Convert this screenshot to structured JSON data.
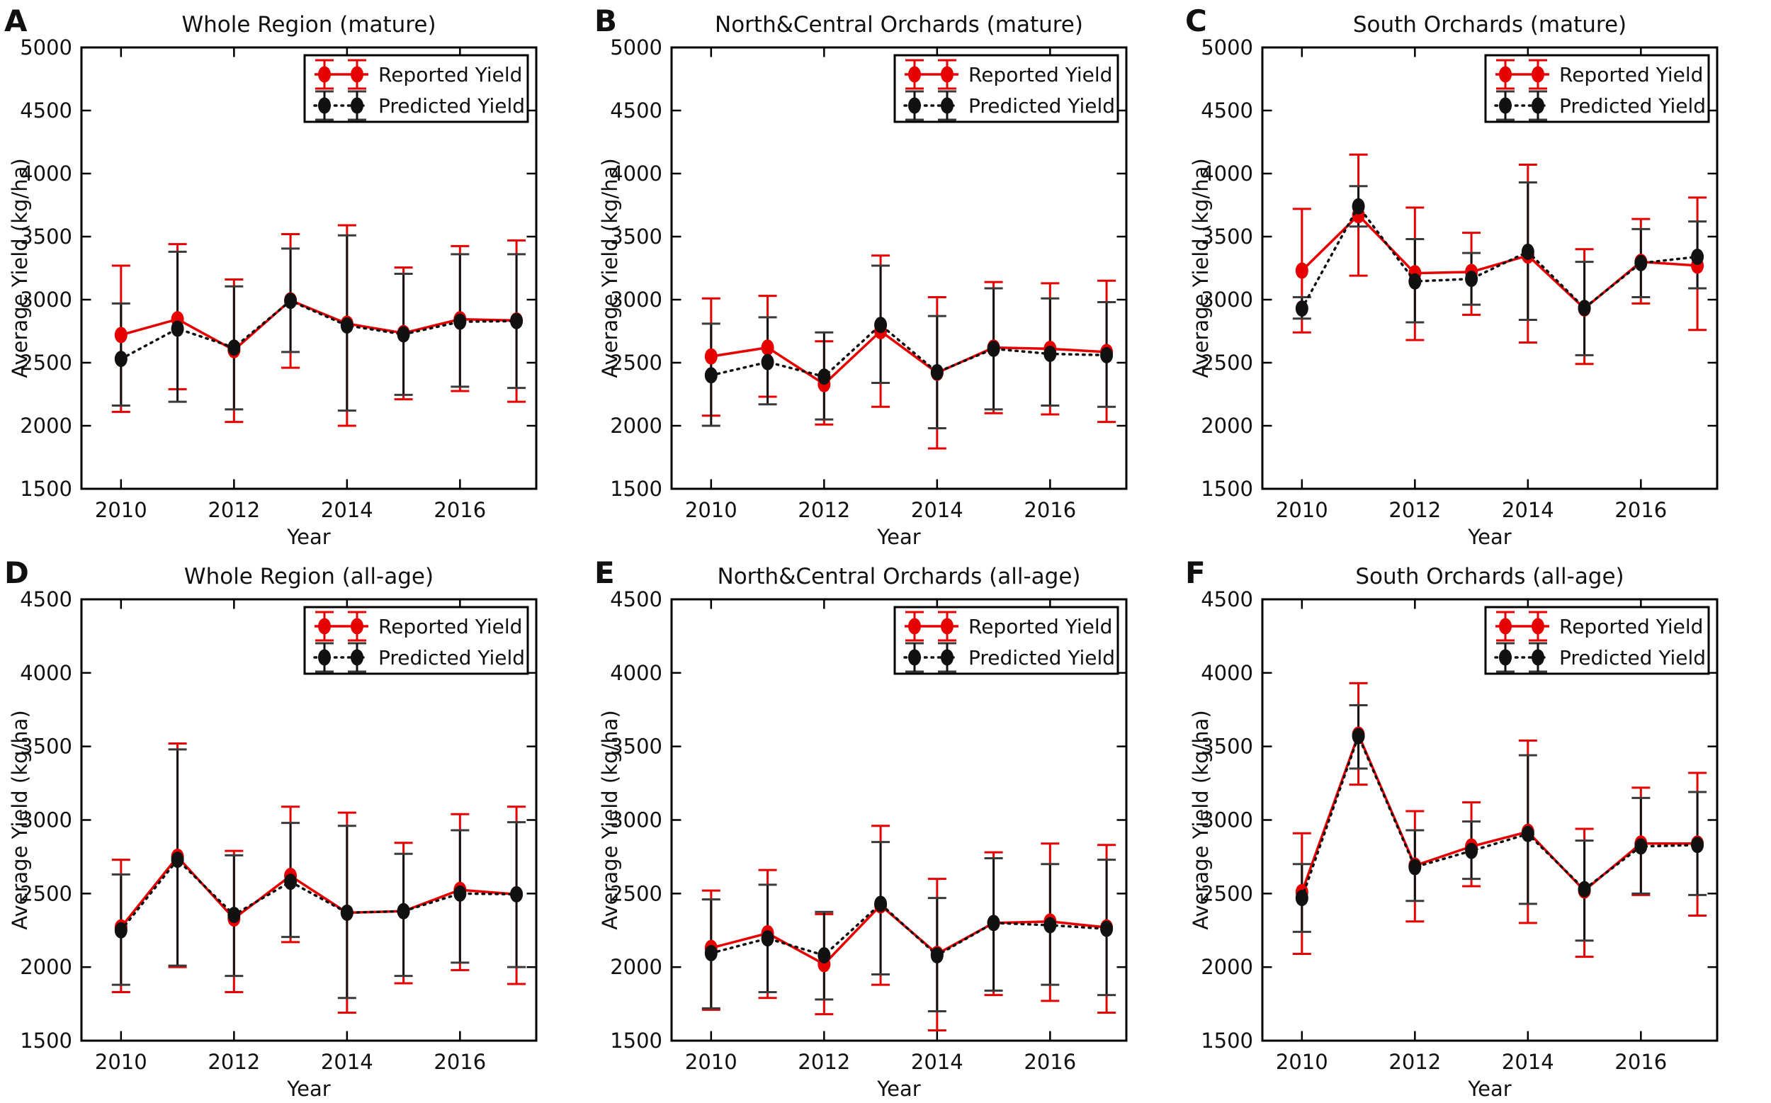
{
  "figure": {
    "xlabel": "Year",
    "ylabel": "Average Yield (kg/ha)",
    "legend": [
      "Reported Yield",
      "Predicted Yield"
    ],
    "colors": {
      "reported": "#e60000",
      "predicted": "#111111"
    }
  },
  "chart_data": [
    {
      "type": "line",
      "panel_label": "A",
      "title": "Whole Region (mature)",
      "xlabel": "Year",
      "ylabel": "Average Yield (kg/ha)",
      "x": [
        2010,
        2011,
        2012,
        2013,
        2014,
        2015,
        2016,
        2017
      ],
      "xticks": [
        2010,
        2012,
        2014,
        2016
      ],
      "xlim": [
        2009.3,
        2017.35
      ],
      "ylim": [
        1500,
        5000
      ],
      "yticks": [
        1500,
        2000,
        2500,
        3000,
        3500,
        4000,
        4500,
        5000
      ],
      "grid": false,
      "legend_position": "top-right",
      "series": [
        {
          "name": "Reported Yield",
          "color": "#e60000",
          "cap_color": "#e60000",
          "line_style": "solid",
          "values": [
            2720,
            2845,
            2600,
            2995,
            2810,
            2735,
            2845,
            2835
          ],
          "err_upper": [
            3270,
            3440,
            3160,
            3520,
            3590,
            3255,
            3425,
            3470
          ],
          "err_lower": [
            2110,
            2290,
            2030,
            2460,
            2000,
            2210,
            2275,
            2190
          ]
        },
        {
          "name": "Predicted Yield",
          "color": "#111111",
          "cap_color": "#3a3a3a",
          "line_style": "dotted",
          "values": [
            2530,
            2770,
            2620,
            2990,
            2795,
            2725,
            2825,
            2830
          ],
          "err_upper": [
            2970,
            3380,
            3105,
            3405,
            3510,
            3205,
            3360,
            3360
          ],
          "err_lower": [
            2160,
            2190,
            2130,
            2585,
            2120,
            2245,
            2310,
            2300
          ]
        }
      ]
    },
    {
      "type": "line",
      "panel_label": "B",
      "title": "North&Central Orchards (mature)",
      "xlabel": "Year",
      "ylabel": "Average Yield (kg/ha)",
      "x": [
        2010,
        2011,
        2012,
        2013,
        2014,
        2015,
        2016,
        2017
      ],
      "xticks": [
        2010,
        2012,
        2014,
        2016
      ],
      "xlim": [
        2009.3,
        2017.35
      ],
      "ylim": [
        1500,
        5000
      ],
      "yticks": [
        1500,
        2000,
        2500,
        3000,
        3500,
        4000,
        4500,
        5000
      ],
      "grid": false,
      "legend_position": "top-right",
      "series": [
        {
          "name": "Reported Yield",
          "color": "#e60000",
          "cap_color": "#e60000",
          "line_style": "solid",
          "values": [
            2550,
            2620,
            2330,
            2750,
            2420,
            2620,
            2610,
            2585
          ],
          "err_upper": [
            3010,
            3030,
            2670,
            3350,
            3020,
            3140,
            3130,
            3150
          ],
          "err_lower": [
            2080,
            2230,
            2010,
            2150,
            1820,
            2100,
            2090,
            2030
          ]
        },
        {
          "name": "Predicted Yield",
          "color": "#111111",
          "cap_color": "#3a3a3a",
          "line_style": "dotted",
          "values": [
            2400,
            2505,
            2390,
            2800,
            2425,
            2610,
            2570,
            2560
          ],
          "err_upper": [
            2810,
            2860,
            2740,
            3270,
            2870,
            3090,
            3010,
            2980
          ],
          "err_lower": [
            2000,
            2170,
            2050,
            2340,
            1980,
            2130,
            2160,
            2150
          ]
        }
      ]
    },
    {
      "type": "line",
      "panel_label": "C",
      "title": "South Orchards (mature)",
      "xlabel": "Year",
      "ylabel": "Average Yield (kg/ha)",
      "x": [
        2010,
        2011,
        2012,
        2013,
        2014,
        2015,
        2016,
        2017
      ],
      "xticks": [
        2010,
        2012,
        2014,
        2016
      ],
      "xlim": [
        2009.3,
        2017.35
      ],
      "ylim": [
        1500,
        5000
      ],
      "yticks": [
        1500,
        2000,
        2500,
        3000,
        3500,
        4000,
        4500,
        5000
      ],
      "grid": false,
      "legend_position": "top-right",
      "series": [
        {
          "name": "Reported Yield",
          "color": "#e60000",
          "cap_color": "#e60000",
          "line_style": "solid",
          "values": [
            3230,
            3670,
            3210,
            3220,
            3350,
            2930,
            3300,
            3270
          ],
          "err_upper": [
            3720,
            4150,
            3730,
            3530,
            4070,
            3400,
            3640,
            3810
          ],
          "err_lower": [
            2740,
            3190,
            2680,
            2880,
            2660,
            2490,
            2970,
            2760
          ]
        },
        {
          "name": "Predicted Yield",
          "color": "#111111",
          "cap_color": "#3a3a3a",
          "line_style": "dotted",
          "values": [
            2930,
            3740,
            3145,
            3165,
            3380,
            2935,
            3290,
            3340
          ],
          "err_upper": [
            3020,
            3900,
            3480,
            3370,
            3930,
            3300,
            3560,
            3620
          ],
          "err_lower": [
            2850,
            3580,
            2820,
            2960,
            2840,
            2560,
            3020,
            3090
          ]
        }
      ]
    },
    {
      "type": "line",
      "panel_label": "D",
      "title": "Whole Region (all-age)",
      "xlabel": "Year",
      "ylabel": "Average Yield (kg/ha)",
      "x": [
        2010,
        2011,
        2012,
        2013,
        2014,
        2015,
        2016,
        2017
      ],
      "xticks": [
        2010,
        2012,
        2014,
        2016
      ],
      "xlim": [
        2009.3,
        2017.35
      ],
      "ylim": [
        1500,
        4500
      ],
      "yticks": [
        1500,
        2000,
        2500,
        3000,
        3500,
        4000,
        4500
      ],
      "grid": false,
      "legend_position": "top-right",
      "series": [
        {
          "name": "Reported Yield",
          "color": "#e60000",
          "cap_color": "#e60000",
          "line_style": "solid",
          "values": [
            2270,
            2750,
            2330,
            2620,
            2370,
            2380,
            2525,
            2495
          ],
          "err_upper": [
            2730,
            3520,
            2790,
            3090,
            3050,
            2845,
            3040,
            3090
          ],
          "err_lower": [
            1830,
            2000,
            1830,
            2170,
            1690,
            1890,
            1980,
            1885
          ]
        },
        {
          "name": "Predicted Yield",
          "color": "#111111",
          "cap_color": "#3a3a3a",
          "line_style": "dotted",
          "values": [
            2250,
            2730,
            2355,
            2580,
            2370,
            2380,
            2500,
            2495
          ],
          "err_upper": [
            2630,
            3480,
            2760,
            2980,
            2960,
            2770,
            2930,
            2985
          ],
          "err_lower": [
            1880,
            2010,
            1940,
            2205,
            1790,
            1940,
            2030,
            2000
          ]
        }
      ]
    },
    {
      "type": "line",
      "panel_label": "E",
      "title": "North&Central Orchards (all-age)",
      "xlabel": "Year",
      "ylabel": "Average Yield (kg/ha)",
      "x": [
        2010,
        2011,
        2012,
        2013,
        2014,
        2015,
        2016,
        2017
      ],
      "xticks": [
        2010,
        2012,
        2014,
        2016
      ],
      "xlim": [
        2009.3,
        2017.35
      ],
      "ylim": [
        1500,
        4500
      ],
      "yticks": [
        1500,
        2000,
        2500,
        3000,
        3500,
        4000,
        4500
      ],
      "grid": false,
      "legend_position": "top-right",
      "series": [
        {
          "name": "Reported Yield",
          "color": "#e60000",
          "cap_color": "#e60000",
          "line_style": "solid",
          "values": [
            2130,
            2230,
            2020,
            2420,
            2090,
            2300,
            2310,
            2270
          ],
          "err_upper": [
            2520,
            2660,
            2360,
            2960,
            2600,
            2780,
            2840,
            2830
          ],
          "err_lower": [
            1710,
            1790,
            1680,
            1880,
            1570,
            1810,
            1770,
            1690
          ]
        },
        {
          "name": "Predicted Yield",
          "color": "#111111",
          "cap_color": "#3a3a3a",
          "line_style": "dotted",
          "values": [
            2095,
            2195,
            2080,
            2430,
            2080,
            2300,
            2285,
            2260
          ],
          "err_upper": [
            2460,
            2560,
            2375,
            2850,
            2470,
            2740,
            2700,
            2730
          ],
          "err_lower": [
            1720,
            1830,
            1780,
            1950,
            1700,
            1840,
            1880,
            1810
          ]
        }
      ]
    },
    {
      "type": "line",
      "panel_label": "F",
      "title": "South Orchards (all-age)",
      "xlabel": "Year",
      "ylabel": "Average Yield (kg/ha)",
      "x": [
        2010,
        2011,
        2012,
        2013,
        2014,
        2015,
        2016,
        2017
      ],
      "xticks": [
        2010,
        2012,
        2014,
        2016
      ],
      "xlim": [
        2009.3,
        2017.35
      ],
      "ylim": [
        1500,
        4500
      ],
      "yticks": [
        1500,
        2000,
        2500,
        3000,
        3500,
        4000,
        4500
      ],
      "grid": false,
      "legend_position": "top-right",
      "series": [
        {
          "name": "Reported Yield",
          "color": "#e60000",
          "cap_color": "#e60000",
          "line_style": "solid",
          "values": [
            2510,
            3580,
            2690,
            2820,
            2920,
            2520,
            2840,
            2840
          ],
          "err_upper": [
            2910,
            3930,
            3060,
            3120,
            3540,
            2940,
            3220,
            3320
          ],
          "err_lower": [
            2090,
            3240,
            2310,
            2550,
            2300,
            2070,
            2490,
            2350
          ]
        },
        {
          "name": "Predicted Yield",
          "color": "#111111",
          "cap_color": "#3a3a3a",
          "line_style": "dotted",
          "values": [
            2470,
            3570,
            2680,
            2790,
            2905,
            2530,
            2820,
            2830
          ],
          "err_upper": [
            2700,
            3780,
            2930,
            2990,
            3440,
            2860,
            3150,
            3190
          ],
          "err_lower": [
            2240,
            3350,
            2450,
            2600,
            2430,
            2180,
            2500,
            2490
          ]
        }
      ]
    }
  ]
}
